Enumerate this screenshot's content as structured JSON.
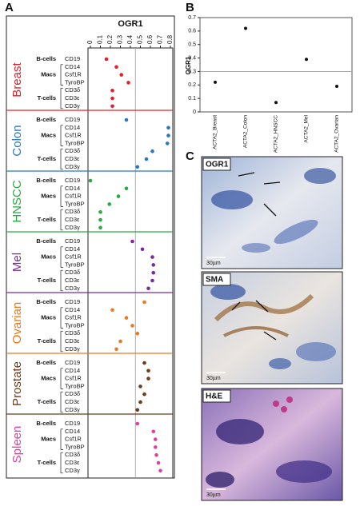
{
  "panel_labels": [
    "A",
    "B",
    "C"
  ],
  "chart_data": [
    {
      "type": "dot",
      "title": "OGR1",
      "categories": [
        "CD19",
        "CD14",
        "Csf1R",
        "TyroBP",
        "CD3δ",
        "CD3ε",
        "CD3γ"
      ],
      "cell_types": [
        "B-cells",
        "Macs",
        "T-cells"
      ],
      "xlim": [
        0,
        0.8
      ],
      "xticks": [
        0,
        0.1,
        0.2,
        0.3,
        0.4,
        0.5,
        0.6,
        0.7,
        0.8
      ],
      "reference_line": 0.45,
      "series": [
        {
          "name": "Breast",
          "color": "#e3202b",
          "values": [
            0.16,
            0.26,
            0.31,
            0.38,
            0.22,
            0.22,
            0.22
          ]
        },
        {
          "name": "Colon",
          "color": "#2878c0",
          "values": [
            0.36,
            0.78,
            0.78,
            0.77,
            0.62,
            0.56,
            0.47
          ]
        },
        {
          "name": "HNSCC",
          "color": "#2aa845",
          "values": [
            0.0,
            0.36,
            0.28,
            0.19,
            0.1,
            0.1,
            0.1
          ]
        },
        {
          "name": "Mel",
          "color": "#7a2a9a",
          "values": [
            0.42,
            0.52,
            0.62,
            0.63,
            0.63,
            0.62,
            0.58
          ]
        },
        {
          "name": "Ovarian",
          "color": "#e87a20",
          "values": [
            0.54,
            0.22,
            0.36,
            0.42,
            0.47,
            0.3,
            0.26
          ]
        },
        {
          "name": "Prostate",
          "color": "#6b3a1a",
          "values": [
            0.54,
            0.58,
            0.58,
            0.5,
            0.54,
            0.5,
            0.47
          ]
        },
        {
          "name": "Spleen",
          "color": "#e040a0",
          "values": [
            0.47,
            0.63,
            0.65,
            0.65,
            0.66,
            0.68,
            0.7
          ]
        }
      ]
    },
    {
      "type": "dot",
      "ylabel": "OGR1",
      "categories": [
        "ACTA2_Breast",
        "ACTA2_Colon",
        "ACTA2_HNSCC",
        "ACTA2_Mel",
        "ACTA2_Ovarian"
      ],
      "values": [
        0.22,
        0.62,
        0.07,
        0.39,
        0.19
      ],
      "color": "#111111",
      "ylim": [
        0,
        0.7
      ],
      "yticks": [
        0,
        0.1,
        0.2,
        0.3,
        0.4,
        0.5,
        0.6,
        0.7
      ],
      "reference_line": 0.3
    }
  ],
  "panel_c": {
    "images": [
      {
        "label": "OGR1",
        "scale": "30µm"
      },
      {
        "label": "SMA",
        "scale": "30µm"
      },
      {
        "label": "H&E",
        "scale": "30µm"
      }
    ]
  }
}
